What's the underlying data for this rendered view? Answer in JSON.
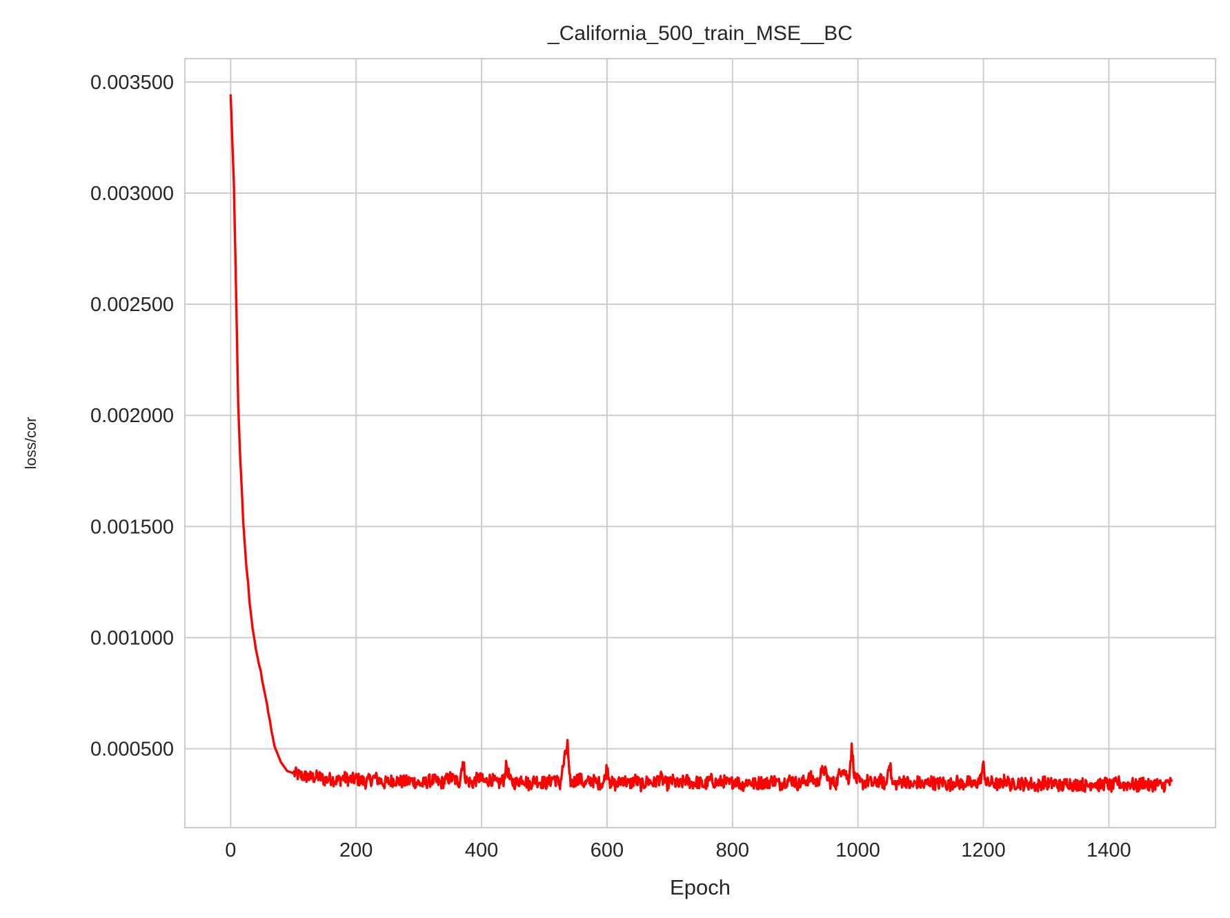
{
  "chart_data": {
    "type": "line",
    "title": "_California_500_train_MSE__BC",
    "xlabel": "Epoch",
    "ylabel": "loss/cor",
    "xlim": [
      -73,
      1570
    ],
    "ylim": [
      0.000145,
      0.003605
    ],
    "xticks": [
      0,
      200,
      400,
      600,
      800,
      1000,
      1200,
      1400
    ],
    "xtick_labels": [
      "0",
      "200",
      "400",
      "600",
      "800",
      "1000",
      "1200",
      "1400"
    ],
    "yticks": [
      0.0005,
      0.001,
      0.0015,
      0.002,
      0.0025,
      0.003,
      0.0035
    ],
    "ytick_labels": [
      "0.000500",
      "0.001000",
      "0.001500",
      "0.002000",
      "0.002500",
      "0.003000",
      "0.003500"
    ],
    "grid": true,
    "series": [
      {
        "color": "#ff0000",
        "x": [
          0,
          2,
          5,
          8,
          10,
          12,
          15,
          18,
          20,
          23,
          25,
          28,
          30,
          33,
          35,
          38,
          40,
          43,
          45,
          48,
          50,
          53,
          55,
          58,
          60,
          63,
          65,
          68,
          70,
          75,
          80,
          85,
          90,
          95,
          100,
          110,
          120,
          130,
          140,
          150,
          160,
          170,
          180,
          190,
          200,
          215,
          230,
          245,
          260,
          275,
          290,
          305,
          320,
          335,
          350,
          365,
          370,
          375,
          385,
          395,
          405,
          415,
          425,
          435,
          440,
          445,
          455,
          465,
          475,
          485,
          495,
          505,
          515,
          525,
          530,
          537,
          540,
          545,
          555,
          565,
          575,
          585,
          595,
          600,
          605,
          615,
          625,
          635,
          645,
          655,
          665,
          675,
          685,
          695,
          705,
          715,
          725,
          735,
          745,
          755,
          765,
          775,
          785,
          795,
          805,
          815,
          825,
          835,
          845,
          855,
          865,
          875,
          885,
          895,
          905,
          915,
          925,
          935,
          945,
          955,
          965,
          975,
          985,
          990,
          995,
          1005,
          1015,
          1025,
          1035,
          1045,
          1050,
          1055,
          1065,
          1075,
          1085,
          1095,
          1105,
          1115,
          1125,
          1135,
          1145,
          1155,
          1165,
          1175,
          1185,
          1195,
          1200,
          1205,
          1215,
          1225,
          1235,
          1245,
          1255,
          1265,
          1275,
          1285,
          1295,
          1305,
          1315,
          1325,
          1335,
          1345,
          1355,
          1365,
          1375,
          1385,
          1395,
          1405,
          1415,
          1425,
          1435,
          1445,
          1455,
          1465,
          1475,
          1485,
          1495,
          1500
        ],
        "y": [
          0.00344,
          0.00328,
          0.00305,
          0.00265,
          0.00235,
          0.00205,
          0.00182,
          0.00165,
          0.00152,
          0.0014,
          0.00132,
          0.00124,
          0.00116,
          0.00109,
          0.00104,
          0.00099,
          0.00095,
          0.00091,
          0.00088,
          0.00085,
          0.00081,
          0.00077,
          0.00074,
          0.0007,
          0.00066,
          0.00062,
          0.00058,
          0.00054,
          0.00051,
          0.000475,
          0.00044,
          0.00042,
          0.0004,
          0.000395,
          0.00039,
          0.00038,
          0.000375,
          0.00037,
          0.000375,
          0.00036,
          0.000365,
          0.000355,
          0.00037,
          0.00036,
          0.000365,
          0.00035,
          0.00037,
          0.000345,
          0.00036,
          0.00035,
          0.000355,
          0.00034,
          0.00036,
          0.000345,
          0.00037,
          0.00035,
          0.00045,
          0.00036,
          0.000345,
          0.00037,
          0.00035,
          0.000365,
          0.00034,
          0.00036,
          0.00043,
          0.000355,
          0.000345,
          0.00037,
          0.00034,
          0.00036,
          0.00035,
          0.000345,
          0.00037,
          0.00034,
          0.00042,
          0.00052,
          0.00036,
          0.000345,
          0.00037,
          0.00034,
          0.00036,
          0.000345,
          0.00035,
          0.00042,
          0.00035,
          0.000335,
          0.000365,
          0.00034,
          0.00036,
          0.000335,
          0.000355,
          0.000345,
          0.00037,
          0.00034,
          0.000355,
          0.000335,
          0.00036,
          0.000345,
          0.00035,
          0.000335,
          0.00036,
          0.000345,
          0.000355,
          0.00034,
          0.00036,
          0.000335,
          0.000355,
          0.00034,
          0.00035,
          0.000345,
          0.00036,
          0.00034,
          0.000355,
          0.00036,
          0.00034,
          0.000355,
          0.00037,
          0.000345,
          0.00041,
          0.00035,
          0.000345,
          0.00042,
          0.00036,
          0.0005,
          0.00037,
          0.00034,
          0.000355,
          0.00034,
          0.00036,
          0.000335,
          0.00045,
          0.00034,
          0.000345,
          0.00036,
          0.00033,
          0.00035,
          0.000335,
          0.000355,
          0.00034,
          0.00035,
          0.000335,
          0.000355,
          0.00034,
          0.00035,
          0.000335,
          0.00036,
          0.00042,
          0.00034,
          0.00035,
          0.000335,
          0.00036,
          0.000335,
          0.00035,
          0.00034,
          0.000345,
          0.00033,
          0.00035,
          0.00034,
          0.000345,
          0.00033,
          0.00035,
          0.000335,
          0.000345,
          0.00033,
          0.00035,
          0.000335,
          0.000345,
          0.00033,
          0.00035,
          0.000335,
          0.000345,
          0.00033,
          0.00035,
          0.00033,
          0.000345,
          0.00033,
          0.00035,
          0.00034
        ],
        "noise_amplitude_after_epoch_100": 3e-05
      }
    ]
  }
}
